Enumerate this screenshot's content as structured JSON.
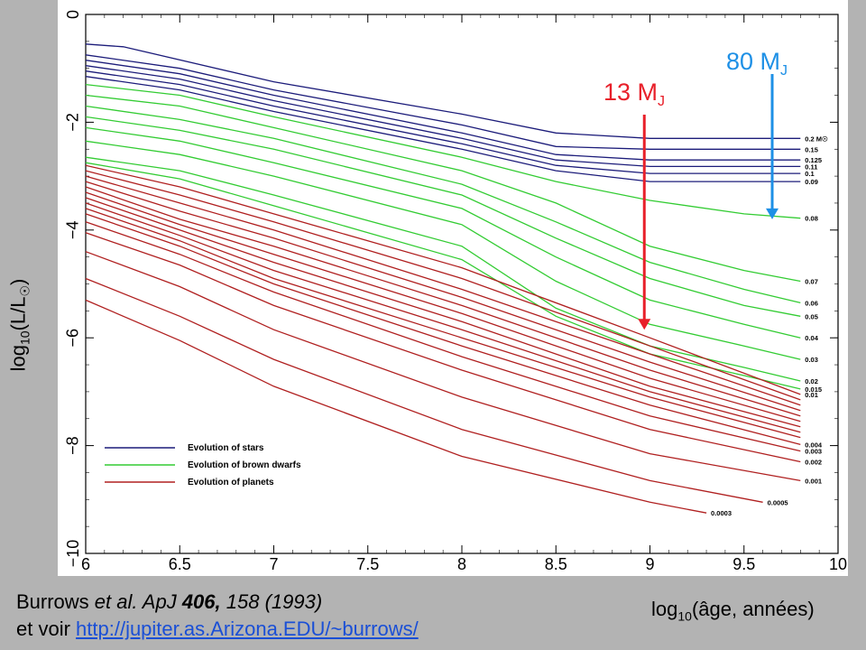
{
  "chart_data": {
    "type": "line",
    "xlim": [
      6,
      10
    ],
    "ylim": [
      -10,
      0
    ],
    "x_ticks": [
      "6",
      "6.5",
      "7",
      "7.5",
      "8",
      "8.5",
      "9",
      "9.5",
      "10"
    ],
    "y_ticks": [
      "0",
      "−2",
      "−4",
      "−6",
      "−8",
      "−10"
    ],
    "grid": false,
    "legend": {
      "placement": "bottom-left",
      "entries": [
        {
          "label": "Evolution of stars",
          "color": "#1c1c7a"
        },
        {
          "label": "Evolution of brown dwarfs",
          "color": "#33cc33"
        },
        {
          "label": "Evolution of planets",
          "color": "#b02020"
        }
      ]
    },
    "groups": [
      {
        "kind": "star",
        "color": "#1c1c7a",
        "curves": [
          {
            "label": "0.2 M☉",
            "points": [
              [
                6,
                -0.55
              ],
              [
                6.2,
                -0.6
              ],
              [
                7,
                -1.25
              ],
              [
                8,
                -1.85
              ],
              [
                8.5,
                -2.2
              ],
              [
                9,
                -2.3
              ],
              [
                9.8,
                -2.3
              ]
            ]
          },
          {
            "label": "0.15",
            "points": [
              [
                6,
                -0.75
              ],
              [
                6.5,
                -1.0
              ],
              [
                7,
                -1.4
              ],
              [
                8,
                -2.05
              ],
              [
                8.5,
                -2.45
              ],
              [
                9,
                -2.5
              ],
              [
                9.8,
                -2.5
              ]
            ]
          },
          {
            "label": "0.125",
            "points": [
              [
                6,
                -0.85
              ],
              [
                6.5,
                -1.1
              ],
              [
                7,
                -1.5
              ],
              [
                8,
                -2.2
              ],
              [
                8.5,
                -2.6
              ],
              [
                9,
                -2.7
              ],
              [
                9.8,
                -2.7
              ]
            ]
          },
          {
            "label": "0.11",
            "points": [
              [
                6,
                -0.95
              ],
              [
                6.5,
                -1.2
              ],
              [
                7,
                -1.6
              ],
              [
                8,
                -2.3
              ],
              [
                8.5,
                -2.7
              ],
              [
                9,
                -2.82
              ],
              [
                9.8,
                -2.82
              ]
            ]
          },
          {
            "label": "0.1",
            "points": [
              [
                6,
                -1.05
              ],
              [
                6.5,
                -1.3
              ],
              [
                7,
                -1.7
              ],
              [
                8,
                -2.4
              ],
              [
                8.5,
                -2.8
              ],
              [
                9,
                -2.95
              ],
              [
                9.8,
                -2.95
              ]
            ]
          },
          {
            "label": "0.09",
            "points": [
              [
                6,
                -1.15
              ],
              [
                6.5,
                -1.4
              ],
              [
                7,
                -1.8
              ],
              [
                8,
                -2.5
              ],
              [
                8.5,
                -2.9
              ],
              [
                9,
                -3.1
              ],
              [
                9.8,
                -3.1
              ]
            ]
          }
        ]
      },
      {
        "kind": "brown-dwarf",
        "color": "#33cc33",
        "curves": [
          {
            "label": "0.08",
            "points": [
              [
                6,
                -1.3
              ],
              [
                6.5,
                -1.5
              ],
              [
                7,
                -1.9
              ],
              [
                8,
                -2.65
              ],
              [
                8.5,
                -3.1
              ],
              [
                9,
                -3.45
              ],
              [
                9.5,
                -3.7
              ],
              [
                9.8,
                -3.78
              ]
            ]
          },
          {
            "label": "0.07",
            "points": [
              [
                6,
                -1.5
              ],
              [
                6.5,
                -1.7
              ],
              [
                7,
                -2.1
              ],
              [
                8,
                -2.9
              ],
              [
                8.5,
                -3.5
              ],
              [
                9,
                -4.3
              ],
              [
                9.5,
                -4.75
              ],
              [
                9.8,
                -4.95
              ]
            ]
          },
          {
            "label": "0.06",
            "points": [
              [
                6,
                -1.7
              ],
              [
                6.5,
                -1.95
              ],
              [
                7,
                -2.3
              ],
              [
                8,
                -3.15
              ],
              [
                8.5,
                -3.85
              ],
              [
                9,
                -4.6
              ],
              [
                9.5,
                -5.1
              ],
              [
                9.8,
                -5.35
              ]
            ]
          },
          {
            "label": "0.05",
            "points": [
              [
                6,
                -1.9
              ],
              [
                6.5,
                -2.15
              ],
              [
                7,
                -2.5
              ],
              [
                8,
                -3.35
              ],
              [
                8.5,
                -4.15
              ],
              [
                9,
                -4.9
              ],
              [
                9.5,
                -5.4
              ],
              [
                9.8,
                -5.6
              ]
            ]
          },
          {
            "label": "0.04",
            "points": [
              [
                6,
                -2.1
              ],
              [
                6.5,
                -2.35
              ],
              [
                7,
                -2.75
              ],
              [
                8,
                -3.6
              ],
              [
                8.5,
                -4.5
              ],
              [
                9,
                -5.3
              ],
              [
                9.5,
                -5.75
              ],
              [
                9.8,
                -6.0
              ]
            ]
          },
          {
            "label": "0.03",
            "points": [
              [
                6,
                -2.35
              ],
              [
                6.5,
                -2.6
              ],
              [
                7,
                -3.0
              ],
              [
                8,
                -3.9
              ],
              [
                8.5,
                -4.95
              ],
              [
                9,
                -5.75
              ],
              [
                9.5,
                -6.15
              ],
              [
                9.8,
                -6.4
              ]
            ]
          },
          {
            "label": "0.02",
            "points": [
              [
                6,
                -2.65
              ],
              [
                6.5,
                -2.9
              ],
              [
                7,
                -3.35
              ],
              [
                8,
                -4.3
              ],
              [
                8.5,
                -5.45
              ],
              [
                9,
                -6.15
              ],
              [
                9.5,
                -6.55
              ],
              [
                9.8,
                -6.8
              ]
            ]
          },
          {
            "label": "0.015",
            "points": [
              [
                6,
                -2.75
              ],
              [
                6.5,
                -3.05
              ],
              [
                7,
                -3.55
              ],
              [
                8,
                -4.55
              ],
              [
                8.5,
                -5.6
              ],
              [
                9,
                -6.3
              ],
              [
                9.5,
                -6.7
              ],
              [
                9.8,
                -6.95
              ]
            ]
          }
        ]
      },
      {
        "kind": "planet",
        "color": "#b02020",
        "curves": [
          {
            "label": "0.01",
            "points": [
              [
                6,
                -2.8
              ],
              [
                6.5,
                -3.2
              ],
              [
                7,
                -3.7
              ],
              [
                8,
                -4.7
              ],
              [
                9,
                -6.0
              ],
              [
                9.8,
                -7.05
              ]
            ]
          },
          {
            "label": "",
            "points": [
              [
                6,
                -2.9
              ],
              [
                6.5,
                -3.35
              ],
              [
                7,
                -3.85
              ],
              [
                8,
                -4.9
              ],
              [
                9,
                -6.15
              ],
              [
                9.8,
                -7.15
              ]
            ]
          },
          {
            "label": "",
            "points": [
              [
                6,
                -3.0
              ],
              [
                6.5,
                -3.5
              ],
              [
                7,
                -4.0
              ],
              [
                8,
                -5.1
              ],
              [
                9,
                -6.3
              ],
              [
                9.8,
                -7.25
              ]
            ]
          },
          {
            "label": "",
            "points": [
              [
                6,
                -3.1
              ],
              [
                6.5,
                -3.65
              ],
              [
                7,
                -4.15
              ],
              [
                8,
                -5.25
              ],
              [
                9,
                -6.45
              ],
              [
                9.8,
                -7.35
              ]
            ]
          },
          {
            "label": "",
            "points": [
              [
                6,
                -3.2
              ],
              [
                6.5,
                -3.8
              ],
              [
                7,
                -4.3
              ],
              [
                8,
                -5.4
              ],
              [
                9,
                -6.6
              ],
              [
                9.8,
                -7.45
              ]
            ]
          },
          {
            "label": "",
            "points": [
              [
                6,
                -3.3
              ],
              [
                6.5,
                -3.9
              ],
              [
                7,
                -4.45
              ],
              [
                8,
                -5.55
              ],
              [
                9,
                -6.75
              ],
              [
                9.8,
                -7.55
              ]
            ]
          },
          {
            "label": "",
            "points": [
              [
                6,
                -3.4
              ],
              [
                6.5,
                -4.0
              ],
              [
                7,
                -4.6
              ],
              [
                8,
                -5.7
              ],
              [
                9,
                -6.9
              ],
              [
                9.8,
                -7.65
              ]
            ]
          },
          {
            "label": "",
            "points": [
              [
                6,
                -3.5
              ],
              [
                6.5,
                -4.1
              ],
              [
                7,
                -4.75
              ],
              [
                8,
                -5.85
              ],
              [
                9,
                -7.0
              ],
              [
                9.8,
                -7.75
              ]
            ]
          },
          {
            "label": "",
            "points": [
              [
                6,
                -3.6
              ],
              [
                6.5,
                -4.2
              ],
              [
                7,
                -4.9
              ],
              [
                8,
                -6.0
              ],
              [
                9,
                -7.1
              ],
              [
                9.8,
                -7.85
              ]
            ]
          },
          {
            "label": "0.004",
            "points": [
              [
                6,
                -3.7
              ],
              [
                6.5,
                -4.3
              ],
              [
                7,
                -5.0
              ],
              [
                8,
                -6.15
              ],
              [
                9,
                -7.25
              ],
              [
                9.8,
                -7.98
              ]
            ]
          },
          {
            "label": "0.003",
            "points": [
              [
                6,
                -3.85
              ],
              [
                6.5,
                -4.45
              ],
              [
                7,
                -5.15
              ],
              [
                8,
                -6.35
              ],
              [
                9,
                -7.45
              ],
              [
                9.8,
                -8.1
              ]
            ]
          },
          {
            "label": "0.002",
            "points": [
              [
                6,
                -4.05
              ],
              [
                6.5,
                -4.65
              ],
              [
                7,
                -5.4
              ],
              [
                8,
                -6.6
              ],
              [
                9,
                -7.7
              ],
              [
                9.8,
                -8.3
              ]
            ]
          },
          {
            "label": "0.001",
            "points": [
              [
                6,
                -4.4
              ],
              [
                6.5,
                -5.05
              ],
              [
                7,
                -5.85
              ],
              [
                8,
                -7.1
              ],
              [
                9,
                -8.15
              ],
              [
                9.8,
                -8.65
              ]
            ]
          },
          {
            "label": "0.0005",
            "points": [
              [
                6,
                -4.9
              ],
              [
                6.5,
                -5.6
              ],
              [
                7,
                -6.4
              ],
              [
                8,
                -7.7
              ],
              [
                9,
                -8.65
              ],
              [
                9.6,
                -9.05
              ]
            ]
          },
          {
            "label": "0.0003",
            "points": [
              [
                6,
                -5.3
              ],
              [
                6.5,
                -6.05
              ],
              [
                7,
                -6.9
              ],
              [
                8,
                -8.2
              ],
              [
                9,
                -9.05
              ],
              [
                9.3,
                -9.25
              ]
            ]
          }
        ]
      }
    ],
    "annotations": [
      {
        "text": "80 M",
        "sub": "J",
        "color": "#1e90e6",
        "target": [
          9.65,
          -3.8
        ]
      },
      {
        "text": "13 M",
        "sub": "J",
        "color": "#e8202a",
        "target": [
          8.97,
          -5.85
        ]
      }
    ]
  },
  "labels": {
    "ylabel_main": "log",
    "ylabel_sub": "10",
    "ylabel_rest": "(L/L",
    "ylabel_sym": "☉",
    "ylabel_end": ")",
    "xlabel_main": "log",
    "xlabel_sub": "10",
    "xlabel_rest": "(âge, années)",
    "citation_authors": "Burrows ",
    "citation_etal": "et al. ApJ ",
    "citation_vol": "406,",
    "citation_rest": " 158 (1993)",
    "citation_line2": "et voir ",
    "citation_url": "http://jupiter.as.Arizona.EDU/~burrows/"
  }
}
